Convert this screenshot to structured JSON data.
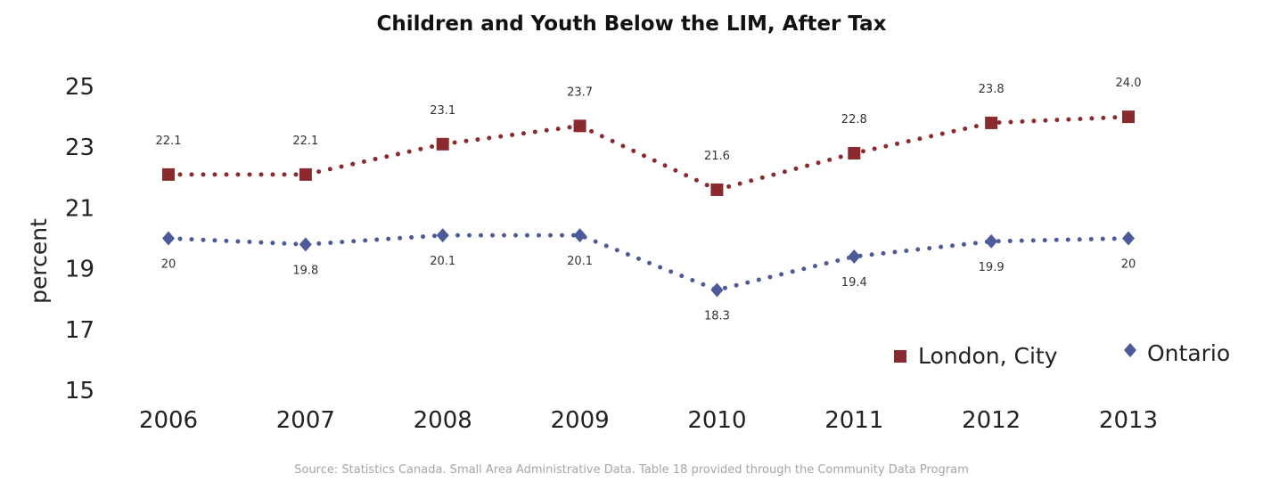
{
  "chart_data": {
    "type": "line",
    "title": "Children and Youth Below the LIM, After Tax",
    "ylabel": "percent",
    "xlabel": "",
    "categories": [
      "2006",
      "2007",
      "2008",
      "2009",
      "2010",
      "2011",
      "2012",
      "2013"
    ],
    "yticks": [
      "15",
      "17",
      "19",
      "21",
      "23",
      "25"
    ],
    "ylim": [
      15,
      25
    ],
    "grid": false,
    "legend_position": "bottom-right",
    "series": [
      {
        "name": "London, City",
        "color": "#8b2a2e",
        "marker": "square",
        "line_style": "dotted",
        "values": [
          22.1,
          22.1,
          23.1,
          23.7,
          21.6,
          22.8,
          23.8,
          24.0
        ],
        "labels": [
          "22.1",
          "22.1",
          "23.1",
          "23.7",
          "21.6",
          "22.8",
          "23.8",
          "24.0"
        ]
      },
      {
        "name": "Ontario",
        "color": "#4d5a9a",
        "marker": "diamond",
        "line_style": "dotted",
        "values": [
          20.0,
          19.8,
          20.1,
          20.1,
          18.3,
          19.4,
          19.9,
          20.0
        ],
        "labels": [
          "20",
          "19.8",
          "20.1",
          "20.1",
          "18.3",
          "19.4",
          "19.9",
          "20"
        ]
      }
    ],
    "source": "Source: Statistics Canada.  Small Area Administrative Data.  Table 18 provided through the Community Data Program"
  }
}
